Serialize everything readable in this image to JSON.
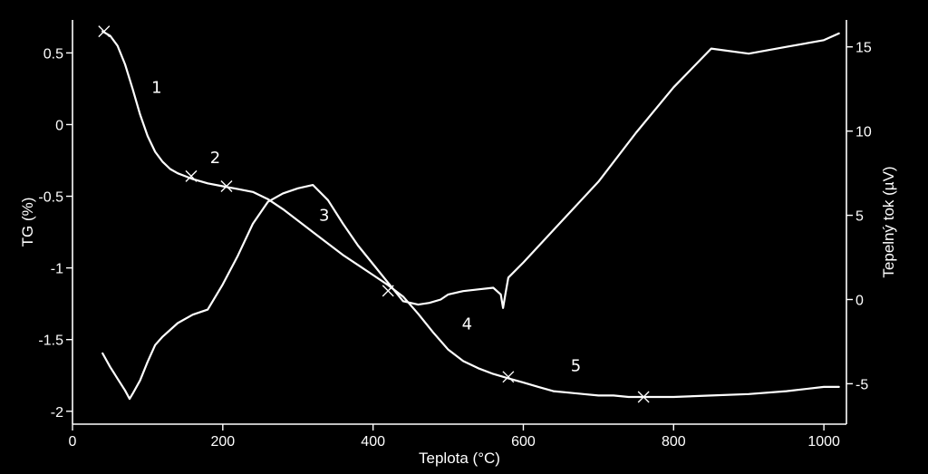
{
  "chart_data": {
    "type": "line",
    "xlabel": "Teplota (°C)",
    "ylabel_left": "TG (%)",
    "ylabel_right": "Tepelný tok (µV)",
    "xlim": [
      0,
      1030
    ],
    "ylim_left": [
      -2.09,
      0.73
    ],
    "ylim_right": [
      -7.4,
      16.6
    ],
    "x_ticks": [
      "0",
      "200",
      "400",
      "600",
      "800",
      "1000"
    ],
    "y_left_ticks": [
      "0.5",
      "0",
      "-0.5",
      "-1",
      "-1.5",
      "-2"
    ],
    "y_right_ticks": [
      "15",
      "10",
      "5",
      "0",
      "-5"
    ],
    "series": [
      {
        "axis": "left",
        "x": [
          40,
          50,
          60,
          70,
          80,
          90,
          100,
          110,
          120,
          130,
          140,
          150,
          160,
          180,
          200,
          220,
          240,
          260,
          280,
          300,
          320,
          340,
          360,
          380,
          400,
          420,
          440,
          460,
          480,
          500,
          520,
          540,
          560,
          580,
          600,
          620,
          640,
          660,
          680,
          700,
          720,
          740,
          760,
          780,
          800,
          850,
          900,
          950,
          1000,
          1020
        ],
        "values": [
          0.65,
          0.62,
          0.55,
          0.42,
          0.25,
          0.07,
          -0.08,
          -0.19,
          -0.26,
          -0.31,
          -0.34,
          -0.36,
          -0.38,
          -0.41,
          -0.43,
          -0.45,
          -0.47,
          -0.52,
          -0.59,
          -0.67,
          -0.75,
          -0.83,
          -0.91,
          -0.98,
          -1.05,
          -1.12,
          -1.2,
          -1.32,
          -1.45,
          -1.57,
          -1.65,
          -1.7,
          -1.74,
          -1.77,
          -1.8,
          -1.83,
          -1.86,
          -1.87,
          -1.88,
          -1.89,
          -1.89,
          -1.9,
          -1.9,
          -1.9,
          -1.9,
          -1.89,
          -1.88,
          -1.86,
          -1.83,
          -1.83
        ]
      },
      {
        "axis": "right",
        "x": [
          40,
          50,
          60,
          70,
          76,
          80,
          90,
          100,
          110,
          120,
          140,
          160,
          180,
          200,
          220,
          240,
          260,
          280,
          300,
          320,
          340,
          360,
          380,
          400,
          420,
          440,
          460,
          475,
          490,
          500,
          520,
          540,
          560,
          570,
          573,
          576,
          580,
          600,
          650,
          700,
          750,
          800,
          850,
          900,
          950,
          1000,
          1020
        ],
        "values": [
          -3.2,
          -4.0,
          -4.7,
          -5.4,
          -5.9,
          -5.6,
          -4.8,
          -3.7,
          -2.7,
          -2.2,
          -1.4,
          -0.9,
          -0.6,
          0.9,
          2.6,
          4.5,
          5.8,
          6.3,
          6.6,
          6.8,
          5.9,
          4.5,
          3.2,
          2.1,
          1.0,
          -0.1,
          -0.3,
          -0.2,
          0.0,
          0.3,
          0.5,
          0.6,
          0.7,
          0.3,
          -0.5,
          0.3,
          1.3,
          2.2,
          4.6,
          7.0,
          9.9,
          12.6,
          14.9,
          14.6,
          15.0,
          15.4,
          15.8
        ]
      }
    ],
    "annotations": [
      "1",
      "2",
      "3",
      "4",
      "5"
    ],
    "annotation_positions": [
      [
        112,
        0.22
      ],
      [
        190,
        -0.27
      ],
      [
        335,
        -0.67
      ],
      [
        525,
        -1.43
      ],
      [
        670,
        -1.72
      ]
    ],
    "cross_markers": [
      [
        42,
        0.65
      ],
      [
        158,
        -0.36
      ],
      [
        205,
        -0.43
      ],
      [
        420,
        -1.16
      ],
      [
        580,
        -1.76
      ],
      [
        760,
        -1.9
      ]
    ],
    "grid": false,
    "legend": "none"
  }
}
